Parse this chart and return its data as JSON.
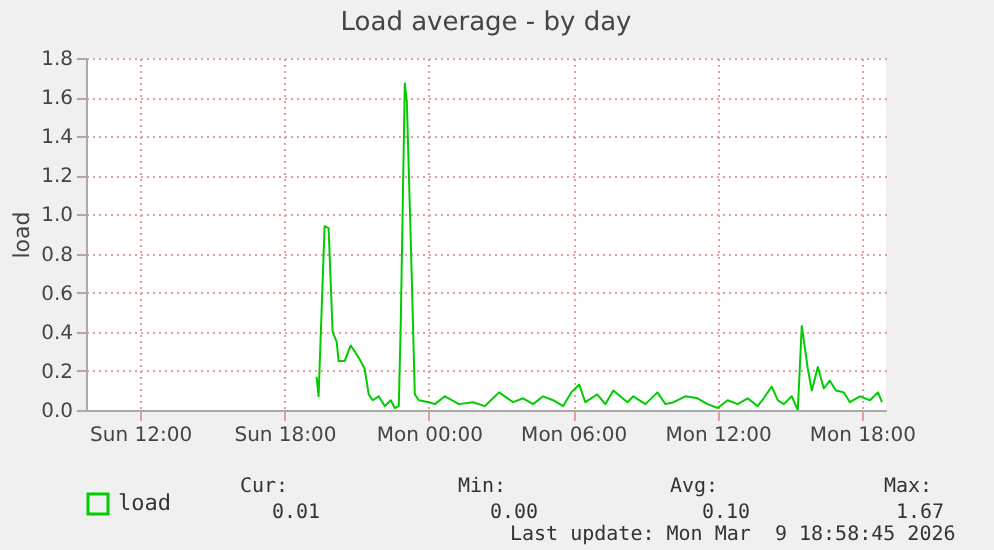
{
  "chart_data": {
    "type": "line",
    "title": "Load average - by day",
    "ylabel": "load",
    "x": [
      "2026-03-08T19:20",
      "2026-03-08T19:25",
      "2026-03-08T19:40",
      "2026-03-08T19:50",
      "2026-03-08T20:00",
      "2026-03-08T20:10",
      "2026-03-08T20:15",
      "2026-03-08T20:30",
      "2026-03-08T20:45",
      "2026-03-08T20:55",
      "2026-03-08T21:10",
      "2026-03-08T21:20",
      "2026-03-08T21:30",
      "2026-03-08T21:40",
      "2026-03-08T21:55",
      "2026-03-08T22:10",
      "2026-03-08T22:25",
      "2026-03-08T22:35",
      "2026-03-08T22:45",
      "2026-03-08T22:50",
      "2026-03-08T23:00",
      "2026-03-08T23:05",
      "2026-03-08T23:15",
      "2026-03-08T23:25",
      "2026-03-08T23:35",
      "2026-03-09T00:00",
      "2026-03-09T00:15",
      "2026-03-09T00:40",
      "2026-03-09T01:15",
      "2026-03-09T01:50",
      "2026-03-09T02:20",
      "2026-03-09T02:55",
      "2026-03-09T03:30",
      "2026-03-09T03:55",
      "2026-03-09T04:20",
      "2026-03-09T04:45",
      "2026-03-09T05:10",
      "2026-03-09T05:35",
      "2026-03-09T05:55",
      "2026-03-09T06:15",
      "2026-03-09T06:30",
      "2026-03-09T07:00",
      "2026-03-09T07:20",
      "2026-03-09T07:40",
      "2026-03-09T08:15",
      "2026-03-09T08:30",
      "2026-03-09T09:00",
      "2026-03-09T09:30",
      "2026-03-09T09:50",
      "2026-03-09T10:10",
      "2026-03-09T10:40",
      "2026-03-09T11:10",
      "2026-03-09T11:35",
      "2026-03-09T12:00",
      "2026-03-09T12:25",
      "2026-03-09T12:50",
      "2026-03-09T13:15",
      "2026-03-09T13:40",
      "2026-03-09T13:55",
      "2026-03-09T14:15",
      "2026-03-09T14:30",
      "2026-03-09T14:45",
      "2026-03-09T15:05",
      "2026-03-09T15:20",
      "2026-03-09T15:30",
      "2026-03-09T15:45",
      "2026-03-09T15:55",
      "2026-03-09T16:10",
      "2026-03-09T16:25",
      "2026-03-09T16:40",
      "2026-03-09T16:55",
      "2026-03-09T17:15",
      "2026-03-09T17:30",
      "2026-03-09T17:55",
      "2026-03-09T18:20",
      "2026-03-09T18:40",
      "2026-03-09T18:50"
    ],
    "series": [
      {
        "name": "load",
        "color": "#00cc00",
        "values": [
          0.17,
          0.07,
          0.94,
          0.93,
          0.4,
          0.35,
          0.25,
          0.25,
          0.33,
          0.3,
          0.25,
          0.21,
          0.08,
          0.05,
          0.07,
          0.02,
          0.05,
          0.01,
          0.02,
          0.45,
          1.67,
          1.58,
          0.86,
          0.08,
          0.05,
          0.04,
          0.03,
          0.07,
          0.03,
          0.04,
          0.02,
          0.09,
          0.04,
          0.06,
          0.03,
          0.07,
          0.05,
          0.02,
          0.09,
          0.13,
          0.04,
          0.08,
          0.03,
          0.1,
          0.04,
          0.07,
          0.03,
          0.09,
          0.03,
          0.04,
          0.07,
          0.06,
          0.03,
          0.01,
          0.05,
          0.03,
          0.06,
          0.02,
          0.06,
          0.12,
          0.05,
          0.03,
          0.07,
          0.0,
          0.43,
          0.21,
          0.1,
          0.22,
          0.11,
          0.15,
          0.1,
          0.09,
          0.04,
          0.07,
          0.05,
          0.09,
          0.04
        ]
      }
    ],
    "xlim": [
      "2026-03-08T09:45",
      "2026-03-09T19:00"
    ],
    "xticks": [
      {
        "value": "2026-03-08T12:00",
        "label": "Sun 12:00"
      },
      {
        "value": "2026-03-08T18:00",
        "label": "Sun 18:00"
      },
      {
        "value": "2026-03-09T00:00",
        "label": "Mon 00:00"
      },
      {
        "value": "2026-03-09T06:00",
        "label": "Mon 06:00"
      },
      {
        "value": "2026-03-09T12:00",
        "label": "Mon 12:00"
      },
      {
        "value": "2026-03-09T18:00",
        "label": "Mon 18:00"
      }
    ],
    "ylim": [
      0,
      1.8
    ],
    "yticks": [
      {
        "value": 0,
        "label": "0.0"
      },
      {
        "value": 0.2,
        "label": "0.2"
      },
      {
        "value": 0.4,
        "label": "0.4"
      },
      {
        "value": 0.6,
        "label": "0.6"
      },
      {
        "value": 0.8,
        "label": "0.8"
      },
      {
        "value": 1,
        "label": "1.0"
      },
      {
        "value": 1.2,
        "label": "1.2"
      },
      {
        "value": 1.4,
        "label": "1.4"
      },
      {
        "value": 1.6,
        "label": "1.6"
      },
      {
        "value": 1.8,
        "label": "1.8"
      }
    ],
    "grid": true,
    "legend": "bottom",
    "annotations": [
      "Cur:",
      "Min:",
      "Avg:",
      "Max:",
      "0.01",
      "0.00",
      "0.10",
      "1.67",
      "Last update: Mon Mar  9 18:58:45 2026"
    ]
  }
}
